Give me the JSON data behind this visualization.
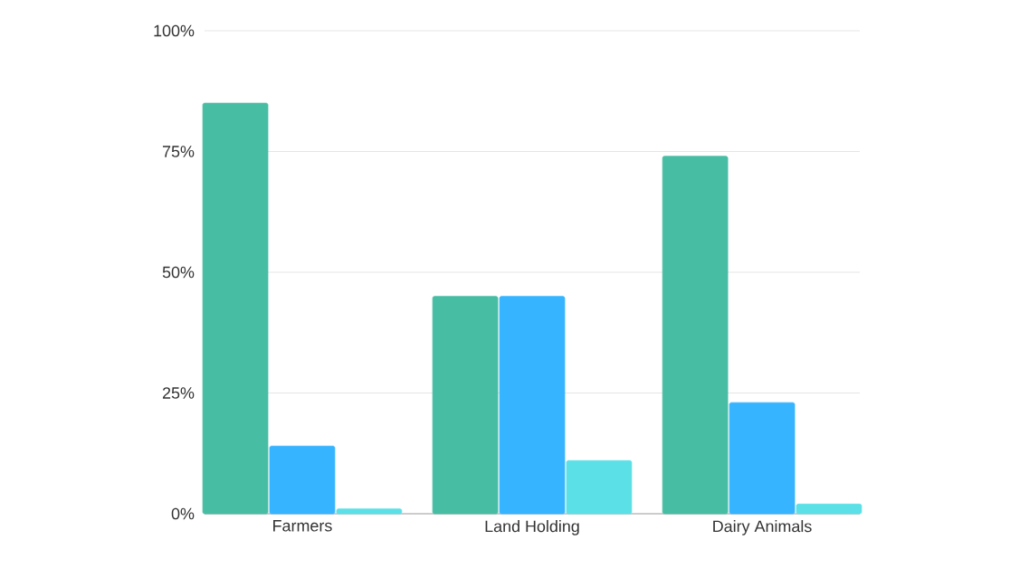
{
  "chart_data": {
    "type": "bar",
    "categories": [
      "Farmers",
      "Land Holding",
      "Dairy Animals"
    ],
    "series": [
      {
        "color": "#47bda3",
        "values": [
          85,
          45,
          74
        ]
      },
      {
        "color": "#36b4ff",
        "values": [
          14,
          45,
          23
        ]
      },
      {
        "color": "#5ae0e6",
        "values": [
          1,
          11,
          2
        ]
      }
    ],
    "ylim": [
      0,
      100
    ],
    "yticks": [
      {
        "value": 0,
        "label": "0%"
      },
      {
        "value": 25,
        "label": "25%"
      },
      {
        "value": 50,
        "label": "50%"
      },
      {
        "value": 75,
        "label": "75%"
      },
      {
        "value": 100,
        "label": "100%"
      }
    ],
    "grid": "y"
  }
}
